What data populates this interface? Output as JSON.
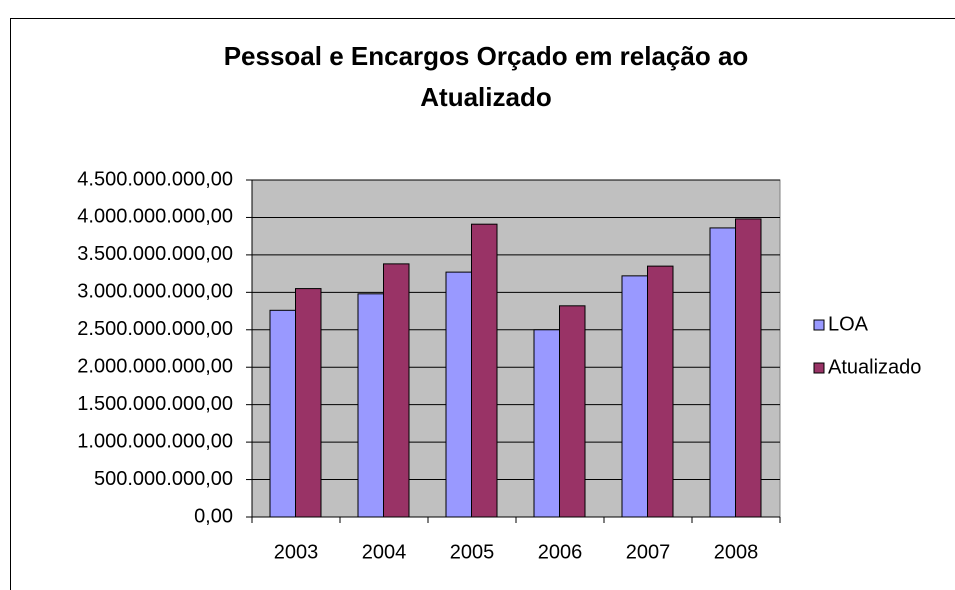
{
  "chart_data": {
    "type": "bar",
    "title": [
      "Pessoal e Encargos Orçado em relação ao",
      "Atualizado"
    ],
    "categories": [
      "2003",
      "2004",
      "2005",
      "2006",
      "2007",
      "2008"
    ],
    "series": [
      {
        "name": "LOA",
        "color": "#9999ff",
        "values": [
          2760000000,
          2980000000,
          3270000000,
          2500000000,
          3220000000,
          3860000000
        ]
      },
      {
        "name": "Atualizado",
        "color": "#993366",
        "values": [
          3050000000,
          3380000000,
          3910000000,
          2820000000,
          3350000000,
          3980000000
        ]
      }
    ],
    "ylim": [
      0,
      4500000000
    ],
    "yticks": [
      {
        "value": 0,
        "label": "0,00"
      },
      {
        "value": 500000000,
        "label": "500.000.000,00"
      },
      {
        "value": 1000000000,
        "label": "1.000.000.000,00"
      },
      {
        "value": 1500000000,
        "label": "1.500.000.000,00"
      },
      {
        "value": 2000000000,
        "label": "2.000.000.000,00"
      },
      {
        "value": 2500000000,
        "label": "2.500.000.000,00"
      },
      {
        "value": 3000000000,
        "label": "3.000.000.000,00"
      },
      {
        "value": 3500000000,
        "label": "3.500.000.000,00"
      },
      {
        "value": 4000000000,
        "label": "4.000.000.000,00"
      },
      {
        "value": 4500000000,
        "label": "4.500.000.000,00"
      }
    ],
    "grid": true,
    "plot_background": "#c0c0c0",
    "legend": "right"
  }
}
